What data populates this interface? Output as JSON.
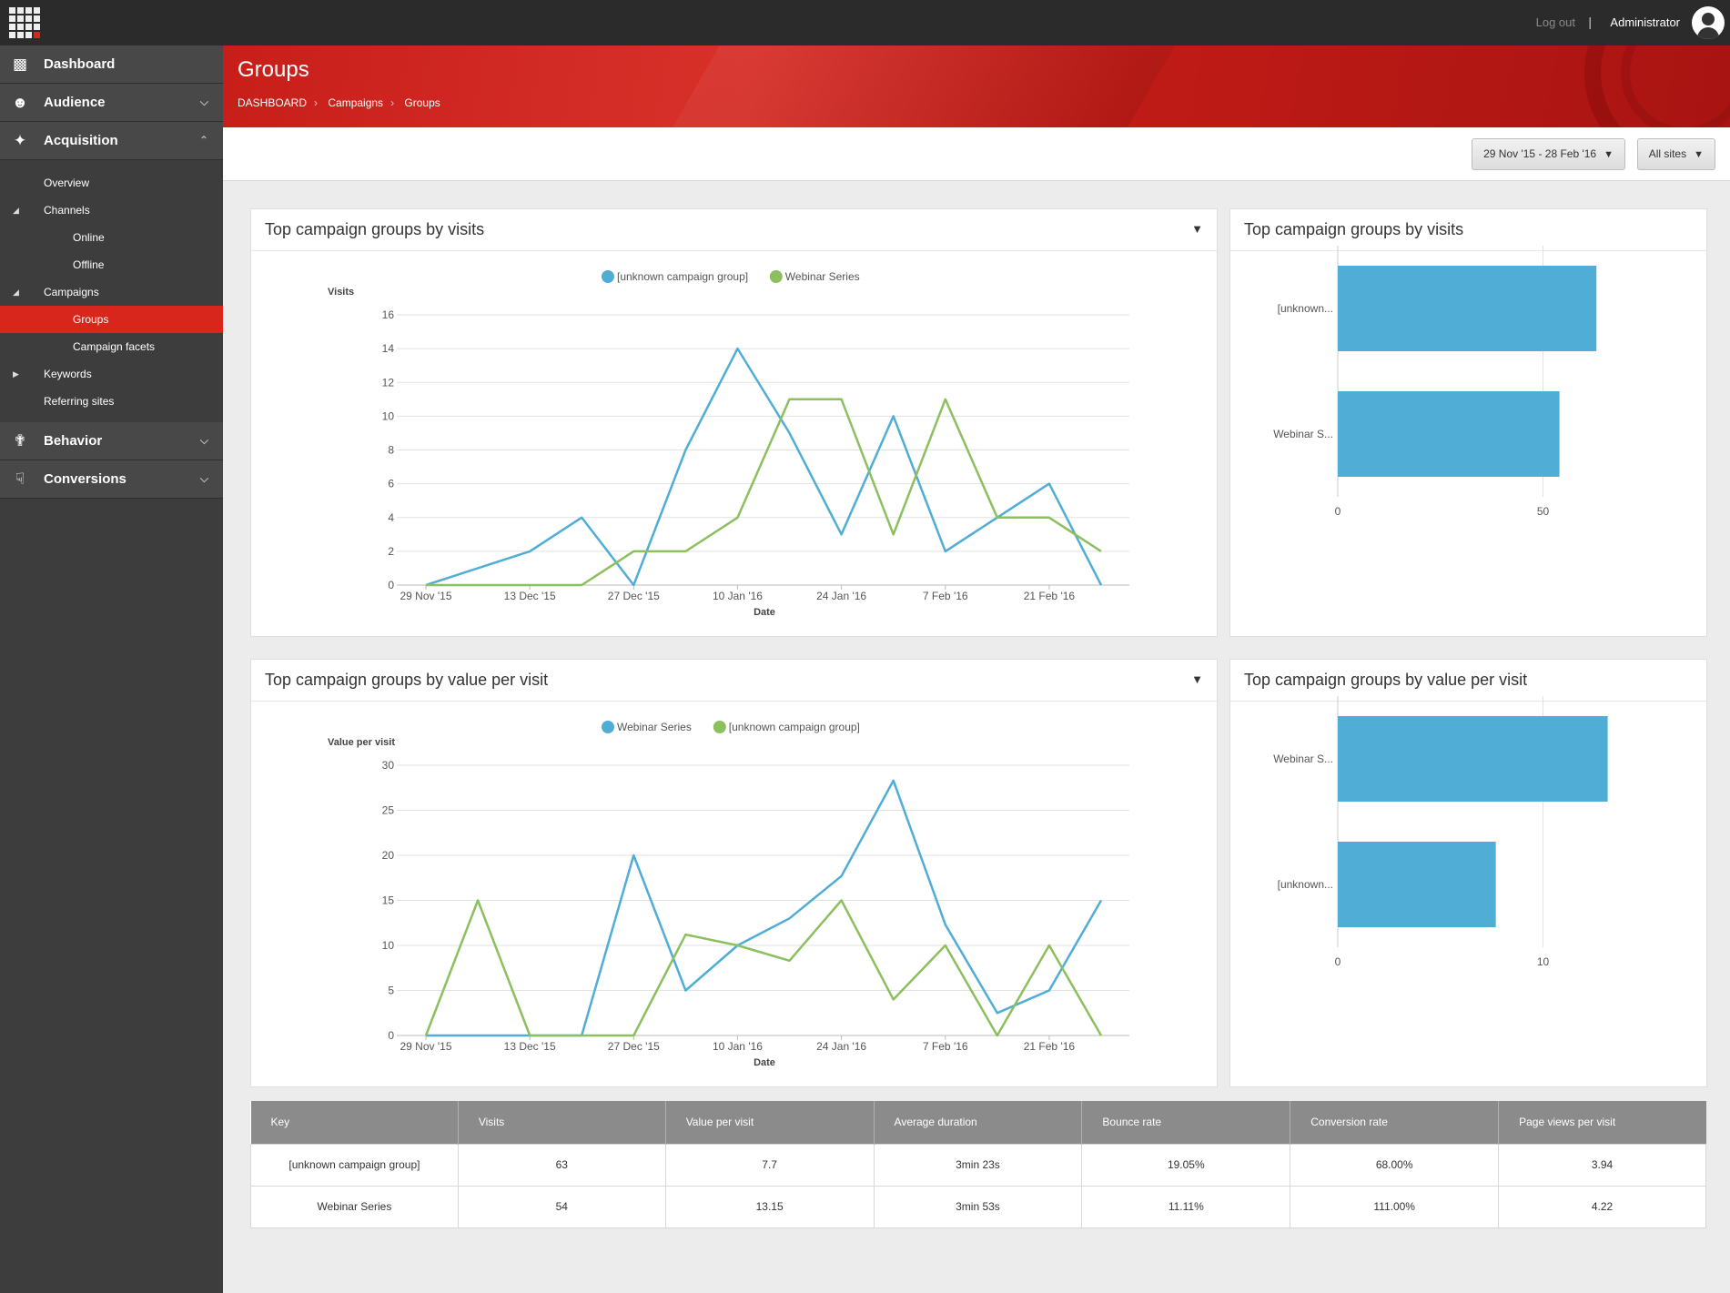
{
  "topbar": {
    "logout": "Log out",
    "separator": "|",
    "user": "Administrator"
  },
  "sidebar": {
    "main": [
      {
        "label": "Dashboard",
        "icon": "presentation-icon"
      },
      {
        "label": "Audience",
        "icon": "people-icon"
      },
      {
        "label": "Acquisition",
        "icon": "compress-arrows-icon"
      }
    ],
    "sub": [
      {
        "label": "Overview"
      },
      {
        "label": "Channels"
      },
      {
        "label": "Online"
      },
      {
        "label": "Offline"
      },
      {
        "label": "Campaigns"
      },
      {
        "label": "Groups"
      },
      {
        "label": "Campaign facets"
      },
      {
        "label": "Keywords"
      },
      {
        "label": "Referring sites"
      }
    ],
    "main2": [
      {
        "label": "Behavior",
        "icon": "signpost-icon"
      },
      {
        "label": "Conversions",
        "icon": "touch-icon"
      }
    ]
  },
  "header": {
    "title": "Groups",
    "breadcrumb": [
      "DASHBOARD",
      "Campaigns",
      "Groups"
    ]
  },
  "filters": {
    "date_range": "29 Nov '15 - 28 Feb '16",
    "sites": "All sites"
  },
  "panels": {
    "visits_line_title": "Top campaign groups by visits",
    "visits_bar_title": "Top campaign groups by visits",
    "value_line_title": "Top campaign groups by value per visit",
    "value_bar_title": "Top campaign groups by value per visit"
  },
  "colors": {
    "blue": "#4fadd6",
    "green": "#8cbf5e",
    "accent": "#d9261c"
  },
  "chart_data": [
    {
      "type": "line",
      "title": "Top campaign groups by visits",
      "xlabel": "Date",
      "ylabel": "Visits",
      "ylim": [
        0,
        16
      ],
      "yticks": [
        0,
        2,
        4,
        6,
        8,
        10,
        12,
        14,
        16
      ],
      "x_tick_labels": [
        "29 Nov '15",
        "13 Dec '15",
        "27 Dec '15",
        "10 Jan '16",
        "24 Jan '16",
        "7 Feb '16",
        "21 Feb '16"
      ],
      "series": [
        {
          "name": "[unknown campaign group]",
          "color": "#4fadd6",
          "values": [
            0,
            1,
            2,
            4,
            0,
            8,
            14,
            9,
            3,
            10,
            2,
            4,
            6,
            0
          ]
        },
        {
          "name": "Webinar Series",
          "color": "#8cbf5e",
          "values": [
            0,
            0,
            0,
            0,
            2,
            2,
            4,
            11,
            11,
            3,
            11,
            4,
            4,
            2
          ]
        }
      ]
    },
    {
      "type": "bar",
      "orientation": "horizontal",
      "title": "Top campaign groups by visits",
      "categories": [
        "[unknown...",
        "Webinar S..."
      ],
      "values": [
        63,
        54
      ],
      "xlim": [
        0,
        100
      ],
      "xticks": [
        0,
        50
      ]
    },
    {
      "type": "line",
      "title": "Top campaign groups by value per visit",
      "xlabel": "Date",
      "ylabel": "Value per visit",
      "ylim": [
        0,
        30
      ],
      "yticks": [
        0,
        5,
        10,
        15,
        20,
        25,
        30
      ],
      "x_tick_labels": [
        "29 Nov '15",
        "13 Dec '15",
        "27 Dec '15",
        "10 Jan '16",
        "24 Jan '16",
        "7 Feb '16",
        "21 Feb '16"
      ],
      "series": [
        {
          "name": "Webinar Series",
          "color": "#4fadd6",
          "values": [
            0,
            0,
            0,
            0,
            20,
            5,
            10,
            13,
            17.7,
            28.3,
            12.3,
            2.5,
            5,
            15
          ]
        },
        {
          "name": "[unknown campaign group]",
          "color": "#8cbf5e",
          "values": [
            0,
            15,
            0,
            0,
            0,
            11.2,
            10,
            8.3,
            15,
            4,
            10,
            0,
            10,
            0
          ]
        }
      ]
    },
    {
      "type": "bar",
      "orientation": "horizontal",
      "title": "Top campaign groups by value per visit",
      "categories": [
        "Webinar S...",
        "[unknown..."
      ],
      "values": [
        13.15,
        7.7
      ],
      "xlim": [
        0,
        20
      ],
      "xticks": [
        0,
        10
      ]
    }
  ],
  "table": {
    "headers": [
      "Key",
      "Visits",
      "Value per visit",
      "Average duration",
      "Bounce rate",
      "Conversion rate",
      "Page views per visit"
    ],
    "rows": [
      [
        "[unknown campaign group]",
        "63",
        "7.7",
        "3min 23s",
        "19.05%",
        "68.00%",
        "3.94"
      ],
      [
        "Webinar Series",
        "54",
        "13.15",
        "3min 53s",
        "11.11%",
        "111.00%",
        "4.22"
      ]
    ]
  }
}
